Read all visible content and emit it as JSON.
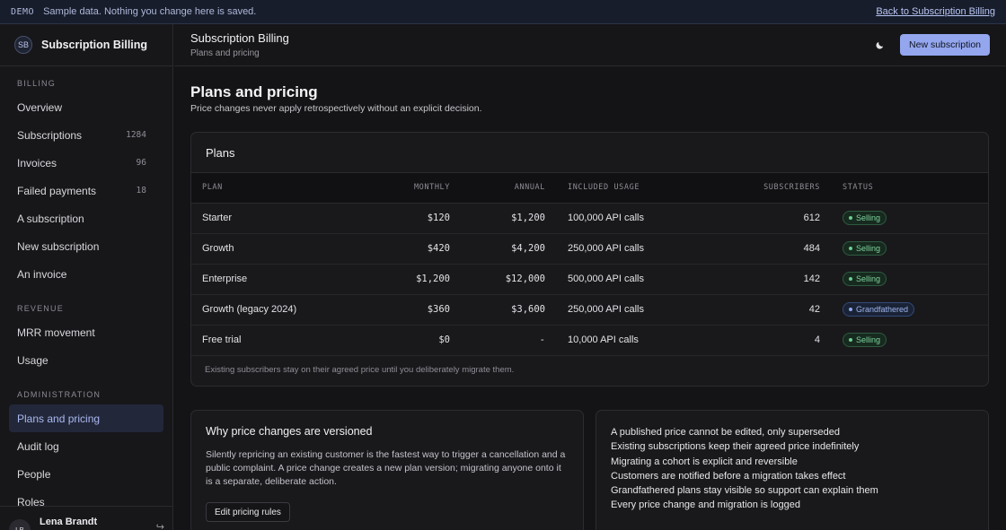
{
  "demo_bar": {
    "tag": "DEMO",
    "text": "Sample data. Nothing you change here is saved.",
    "back_link": "Back to Subscription Billing"
  },
  "brand": {
    "initials": "SB",
    "name": "Subscription Billing"
  },
  "nav": {
    "billing_label": "BILLING",
    "billing": [
      {
        "label": "Overview",
        "count": ""
      },
      {
        "label": "Subscriptions",
        "count": "1284"
      },
      {
        "label": "Invoices",
        "count": "96"
      },
      {
        "label": "Failed payments",
        "count": "18"
      },
      {
        "label": "A subscription",
        "count": ""
      },
      {
        "label": "New subscription",
        "count": ""
      },
      {
        "label": "An invoice",
        "count": ""
      }
    ],
    "revenue_label": "REVENUE",
    "revenue": [
      {
        "label": "MRR movement"
      },
      {
        "label": "Usage"
      }
    ],
    "admin_label": "ADMINISTRATION",
    "admin": [
      {
        "label": "Plans and pricing"
      },
      {
        "label": "Audit log"
      },
      {
        "label": "People"
      },
      {
        "label": "Roles"
      }
    ]
  },
  "user": {
    "initials": "LB",
    "name": "Lena Brandt",
    "action": "↪"
  },
  "topbar": {
    "title": "Subscription Billing",
    "subtitle": "Plans and pricing",
    "theme_icon": "moon-icon",
    "new_button": "New subscription"
  },
  "page": {
    "title": "Plans and pricing",
    "subtitle": "Price changes never apply retrospectively without an explicit decision."
  },
  "plans": {
    "title": "Plans",
    "columns": [
      "PLAN",
      "MONTHLY",
      "ANNUAL",
      "INCLUDED USAGE",
      "SUBSCRIBERS",
      "STATUS"
    ],
    "rows": [
      {
        "plan": "Starter",
        "monthly": "$120",
        "annual": "$1,200",
        "usage": "100,000 API calls",
        "subscribers": "612",
        "status": "Selling",
        "status_kind": "selling"
      },
      {
        "plan": "Growth",
        "monthly": "$420",
        "annual": "$4,200",
        "usage": "250,000 API calls",
        "subscribers": "484",
        "status": "Selling",
        "status_kind": "selling"
      },
      {
        "plan": "Enterprise",
        "monthly": "$1,200",
        "annual": "$12,000",
        "usage": "500,000 API calls",
        "subscribers": "142",
        "status": "Selling",
        "status_kind": "selling"
      },
      {
        "plan": "Growth (legacy 2024)",
        "monthly": "$360",
        "annual": "$3,600",
        "usage": "250,000 API calls",
        "subscribers": "42",
        "status": "Grandfathered",
        "status_kind": "grand"
      },
      {
        "plan": "Free trial",
        "monthly": "$0",
        "annual": "-",
        "usage": "10,000 API calls",
        "subscribers": "4",
        "status": "Selling",
        "status_kind": "selling"
      }
    ],
    "footer": "Existing subscribers stay on their agreed price until you deliberately migrate them."
  },
  "why": {
    "title": "Why price changes are versioned",
    "body": "Silently repricing an existing customer is the fastest way to trigger a cancellation and a public complaint. A price change creates a new plan version; migrating anyone onto it is a separate, deliberate action.",
    "button": "Edit pricing rules"
  },
  "rules": [
    "A published price cannot be edited, only superseded",
    "Existing subscriptions keep their agreed price indefinitely",
    "Migrating a cohort is explicit and reversible",
    "Customers are notified before a migration takes effect",
    "Grandfathered plans stay visible so support can explain them",
    "Every price change and migration is logged"
  ],
  "colors": {
    "accent": "#93a6ee",
    "selling": "#6ccf8f",
    "grandfathered": "#8ea8ef"
  }
}
